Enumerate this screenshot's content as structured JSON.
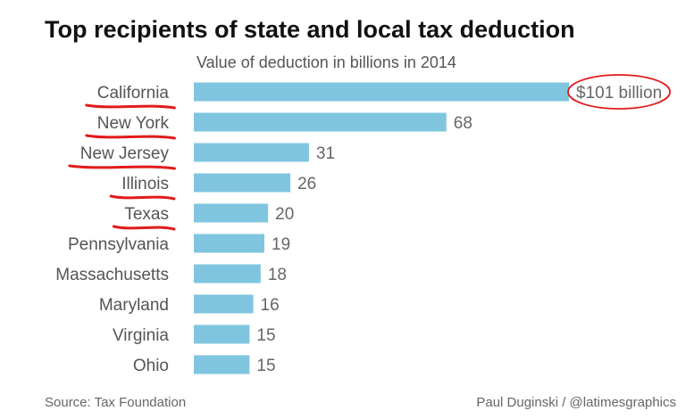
{
  "chart_data": {
    "type": "bar",
    "orientation": "horizontal",
    "title": "Top recipients of state and local tax deduction",
    "subtitle": "Value of deduction in billions in 2014",
    "categories": [
      "California",
      "New York",
      "New Jersey",
      "Illinois",
      "Texas",
      "Pennsylvania",
      "Massachusetts",
      "Maryland",
      "Virginia",
      "Ohio"
    ],
    "values": [
      101,
      68,
      31,
      26,
      20,
      19,
      18,
      16,
      15,
      15
    ],
    "value_labels": [
      "$101 billion",
      "68",
      "31",
      "26",
      "20",
      "19",
      "18",
      "16",
      "15",
      "15"
    ],
    "unit": "billions",
    "xlim": [
      0,
      101
    ],
    "grid": false,
    "bar_color": "#80c5df",
    "annotations": {
      "underlined_categories": [
        "California",
        "New York",
        "New Jersey",
        "Illinois",
        "Texas"
      ],
      "circled_value_label": "$101 billion",
      "annotation_color": "#e11b1b"
    }
  },
  "footer": {
    "source": "Source: Tax Foundation",
    "credit": "Paul Duginski / @latimesgraphics"
  }
}
